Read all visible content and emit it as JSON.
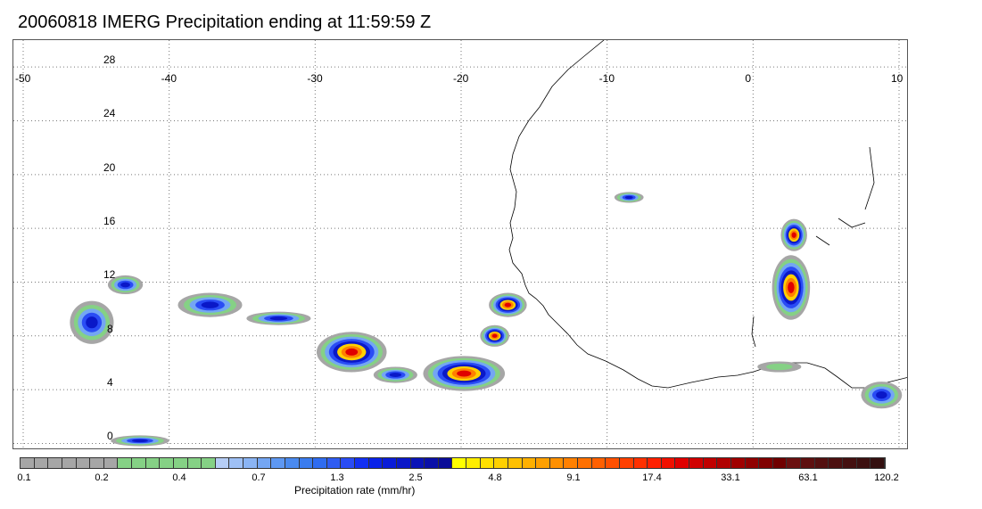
{
  "title": "20060818 IMERG Precipitation ending at 11:59:59 Z",
  "map": {
    "lon_ticks": [
      "-50",
      "-40",
      "-30",
      "-20",
      "-10",
      "0",
      "10"
    ],
    "lat_ticks": [
      "28",
      "24",
      "20",
      "16",
      "12",
      "8",
      "4",
      "0"
    ],
    "lon_range": [
      -50,
      10
    ],
    "lat_range": [
      -0.5,
      30
    ],
    "grid": true
  },
  "colorbar": {
    "title": "Precipitation rate (mm/hr)",
    "labels": [
      "0.1",
      "0.2",
      "0.4",
      "0.7",
      "1.3",
      "2.5",
      "4.8",
      "9.1",
      "17.4",
      "33.1",
      "63.1",
      "120.2"
    ],
    "colors": [
      "#a6a6a6",
      "#a6a6a6",
      "#a6a6a6",
      "#a6a6a6",
      "#a6a6a6",
      "#a6a6a6",
      "#a6a6a6",
      "#85d185",
      "#85d185",
      "#85d185",
      "#85d185",
      "#85d185",
      "#85d185",
      "#85d185",
      "#b5cdf5",
      "#9ec0f5",
      "#8ab4f4",
      "#74a6f3",
      "#5e98f2",
      "#4a8aef",
      "#3a7cee",
      "#2f6cf0",
      "#2f5cf2",
      "#2a4cf5",
      "#1330f2",
      "#0a22e8",
      "#0a1cd8",
      "#0a18c8",
      "#0a14b8",
      "#0a10a8",
      "#0a0c98",
      "#ffff00",
      "#ffee00",
      "#ffe000",
      "#ffd000",
      "#ffc000",
      "#ffb000",
      "#ffa000",
      "#ff9000",
      "#ff8000",
      "#ff7000",
      "#ff6000",
      "#ff5000",
      "#ff4000",
      "#ff3000",
      "#ff2000",
      "#f01000",
      "#e00000",
      "#d00000",
      "#c00000",
      "#b00000",
      "#a00000",
      "#900000",
      "#800000",
      "#700000",
      "#6a1010",
      "#5e1010",
      "#541010",
      "#4c1010",
      "#441010",
      "#3c1010",
      "#341010"
    ]
  },
  "precip_cells": [
    {
      "lon": -45.3,
      "lat": 9.0,
      "rx": 1.5,
      "ry": 1.6,
      "peak": "blue"
    },
    {
      "lon": -43.0,
      "lat": 11.8,
      "rx": 1.2,
      "ry": 0.7,
      "peak": "blue"
    },
    {
      "lon": -37.2,
      "lat": 10.3,
      "rx": 2.2,
      "ry": 0.9,
      "peak": "blue"
    },
    {
      "lon": -32.5,
      "lat": 9.3,
      "rx": 2.2,
      "ry": 0.5,
      "peak": "blue"
    },
    {
      "lon": -27.5,
      "lat": 6.8,
      "rx": 2.4,
      "ry": 1.5,
      "peak": "red"
    },
    {
      "lon": -24.5,
      "lat": 5.1,
      "rx": 1.5,
      "ry": 0.6,
      "peak": "blue"
    },
    {
      "lon": -19.8,
      "lat": 5.2,
      "rx": 2.8,
      "ry": 1.3,
      "peak": "red"
    },
    {
      "lon": -17.7,
      "lat": 8.0,
      "rx": 1.0,
      "ry": 0.8,
      "peak": "red"
    },
    {
      "lon": -16.8,
      "lat": 10.3,
      "rx": 1.3,
      "ry": 0.9,
      "peak": "red"
    },
    {
      "lon": -8.5,
      "lat": 18.3,
      "rx": 1.0,
      "ry": 0.4,
      "peak": "blue"
    },
    {
      "lon": 2.6,
      "lat": 11.6,
      "rx": 1.3,
      "ry": 2.4,
      "peak": "red"
    },
    {
      "lon": 2.8,
      "lat": 15.5,
      "rx": 0.9,
      "ry": 1.2,
      "peak": "red"
    },
    {
      "lon": 8.8,
      "lat": 3.6,
      "rx": 1.4,
      "ry": 1.0,
      "peak": "blue"
    },
    {
      "lon": -42.0,
      "lat": 0.2,
      "rx": 2.0,
      "ry": 0.4,
      "peak": "blue"
    },
    {
      "lon": 1.8,
      "lat": 5.7,
      "rx": 1.5,
      "ry": 0.4,
      "peak": "green"
    }
  ]
}
